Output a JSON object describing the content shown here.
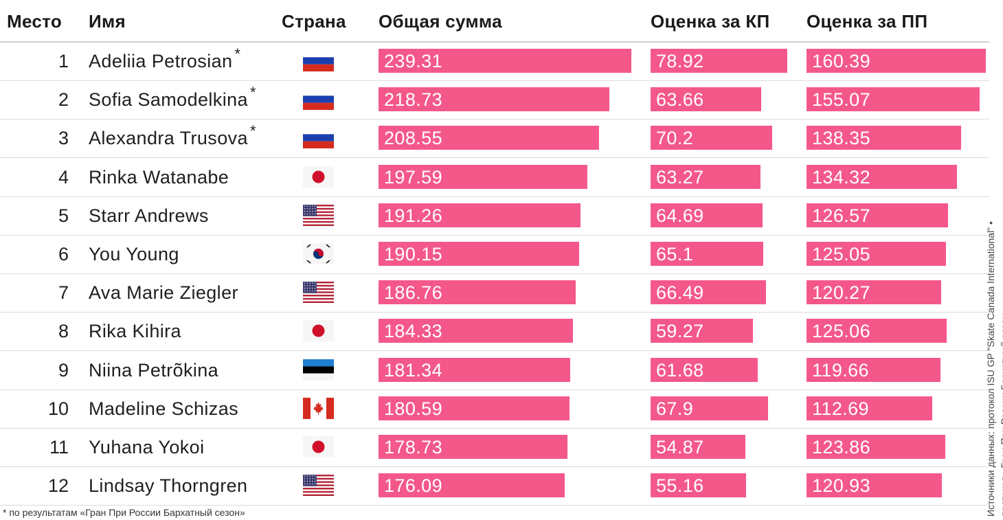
{
  "columns": {
    "rank": "Место",
    "name": "Имя",
    "country": "Страна",
    "total": "Общая сумма",
    "sp": "Оценка за КП",
    "fs": "Оценка за ПП"
  },
  "footnote": "* по результатам «Гран При России Бархатный сезон»",
  "source_line1": "Источники данных: протокол ISU GP \"Skate Canada International\" •",
  "source_line2": "протокол «Гран При России Бархатный сезон»",
  "colors": {
    "bar": "#f4588a"
  },
  "chart_data": {
    "type": "table",
    "series_names": [
      "Общая сумма",
      "Оценка за КП",
      "Оценка за ПП"
    ],
    "rows": [
      {
        "rank": "1",
        "name": "Adeliia Petrosian",
        "star": "*",
        "country": "russia",
        "total": "239.31",
        "sp": "78.92",
        "fs": "160.39"
      },
      {
        "rank": "2",
        "name": "Sofia Samodelkina",
        "star": "*",
        "country": "russia",
        "total": "218.73",
        "sp": "63.66",
        "fs": "155.07"
      },
      {
        "rank": "3",
        "name": "Alexandra Trusova",
        "star": "*",
        "country": "russia",
        "total": "208.55",
        "sp": "70.2",
        "fs": "138.35"
      },
      {
        "rank": "4",
        "name": "Rinka Watanabe",
        "star": "",
        "country": "japan",
        "total": "197.59",
        "sp": "63.27",
        "fs": "134.32"
      },
      {
        "rank": "5",
        "name": "Starr Andrews",
        "star": "",
        "country": "usa",
        "total": "191.26",
        "sp": "64.69",
        "fs": "126.57"
      },
      {
        "rank": "6",
        "name": "You Young",
        "star": "",
        "country": "korea",
        "total": "190.15",
        "sp": "65.1",
        "fs": "125.05"
      },
      {
        "rank": "7",
        "name": "Ava Marie Ziegler",
        "star": "",
        "country": "usa",
        "total": "186.76",
        "sp": "66.49",
        "fs": "120.27"
      },
      {
        "rank": "8",
        "name": "Rika Kihira",
        "star": "",
        "country": "japan",
        "total": "184.33",
        "sp": "59.27",
        "fs": "125.06"
      },
      {
        "rank": "9",
        "name": "Niina Petrõkina",
        "star": "",
        "country": "estonia",
        "total": "181.34",
        "sp": "61.68",
        "fs": "119.66"
      },
      {
        "rank": "10",
        "name": "Madeline Schizas",
        "star": "",
        "country": "canada",
        "total": "180.59",
        "sp": "67.9",
        "fs": "112.69"
      },
      {
        "rank": "11",
        "name": "Yuhana Yokoi",
        "star": "",
        "country": "japan",
        "total": "178.73",
        "sp": "54.87",
        "fs": "123.86"
      },
      {
        "rank": "12",
        "name": "Lindsay Thorngren",
        "star": "",
        "country": "usa",
        "total": "176.09",
        "sp": "55.16",
        "fs": "120.93"
      }
    ]
  }
}
